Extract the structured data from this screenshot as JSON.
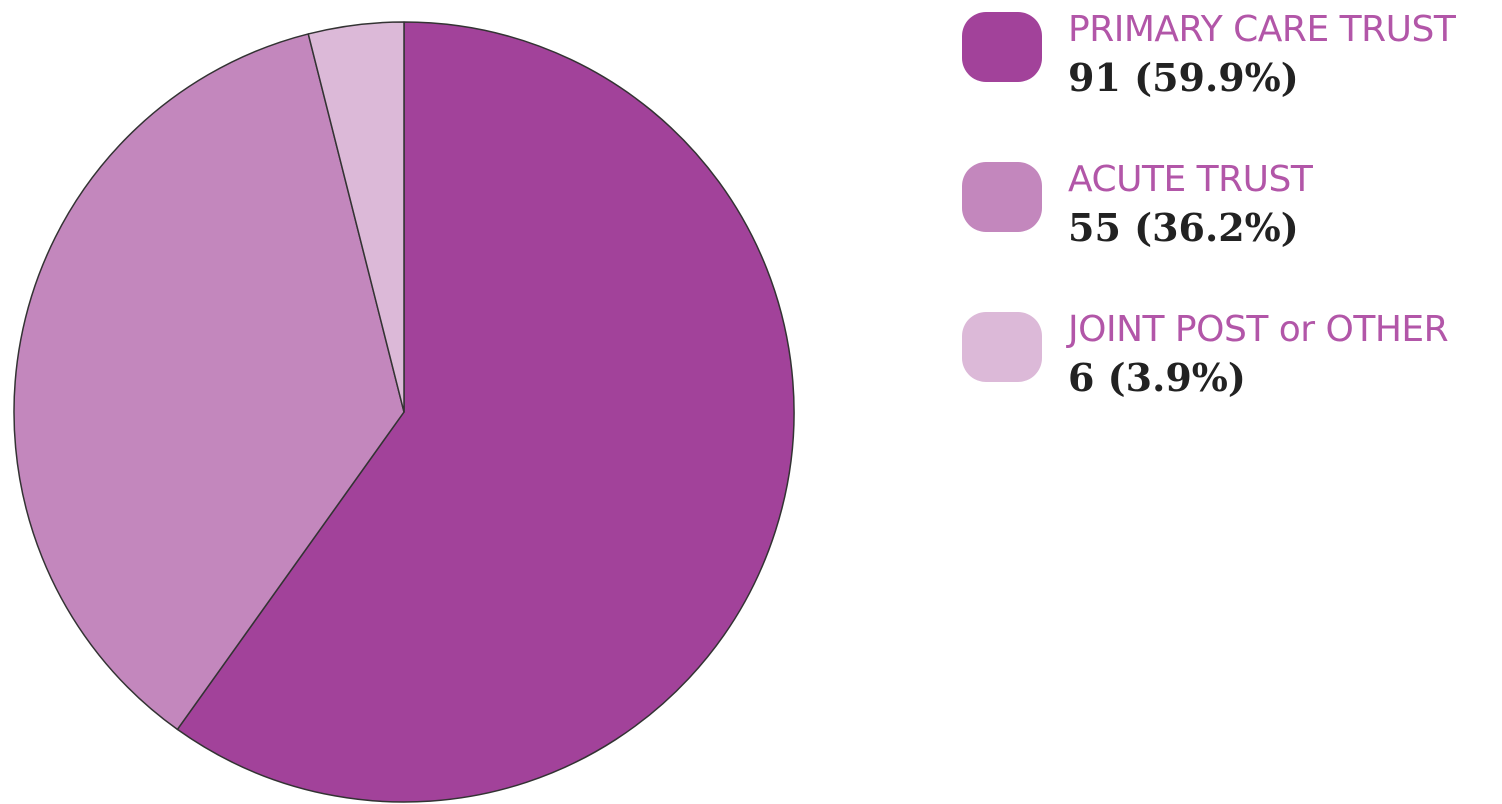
{
  "chart_data": {
    "type": "pie",
    "title": "",
    "start_angle_deg": 0,
    "direction": "clockwise",
    "slices": [
      {
        "label": "PRIMARY CARE TRUST",
        "value": 91,
        "percent": 59.9,
        "value_text": "91 (59.9%)",
        "color": "#a2429a"
      },
      {
        "label": "ACUTE TRUST",
        "value": 55,
        "percent": 36.2,
        "value_text": "55 (36.2%)",
        "color": "#c387bd"
      },
      {
        "label": "JOINT POST or OTHER",
        "value": 6,
        "percent": 3.9,
        "value_text": "6 (3.9%)",
        "color": "#dcb9d8"
      }
    ],
    "legend_position": "right",
    "slice_outline_color": "#333333"
  }
}
